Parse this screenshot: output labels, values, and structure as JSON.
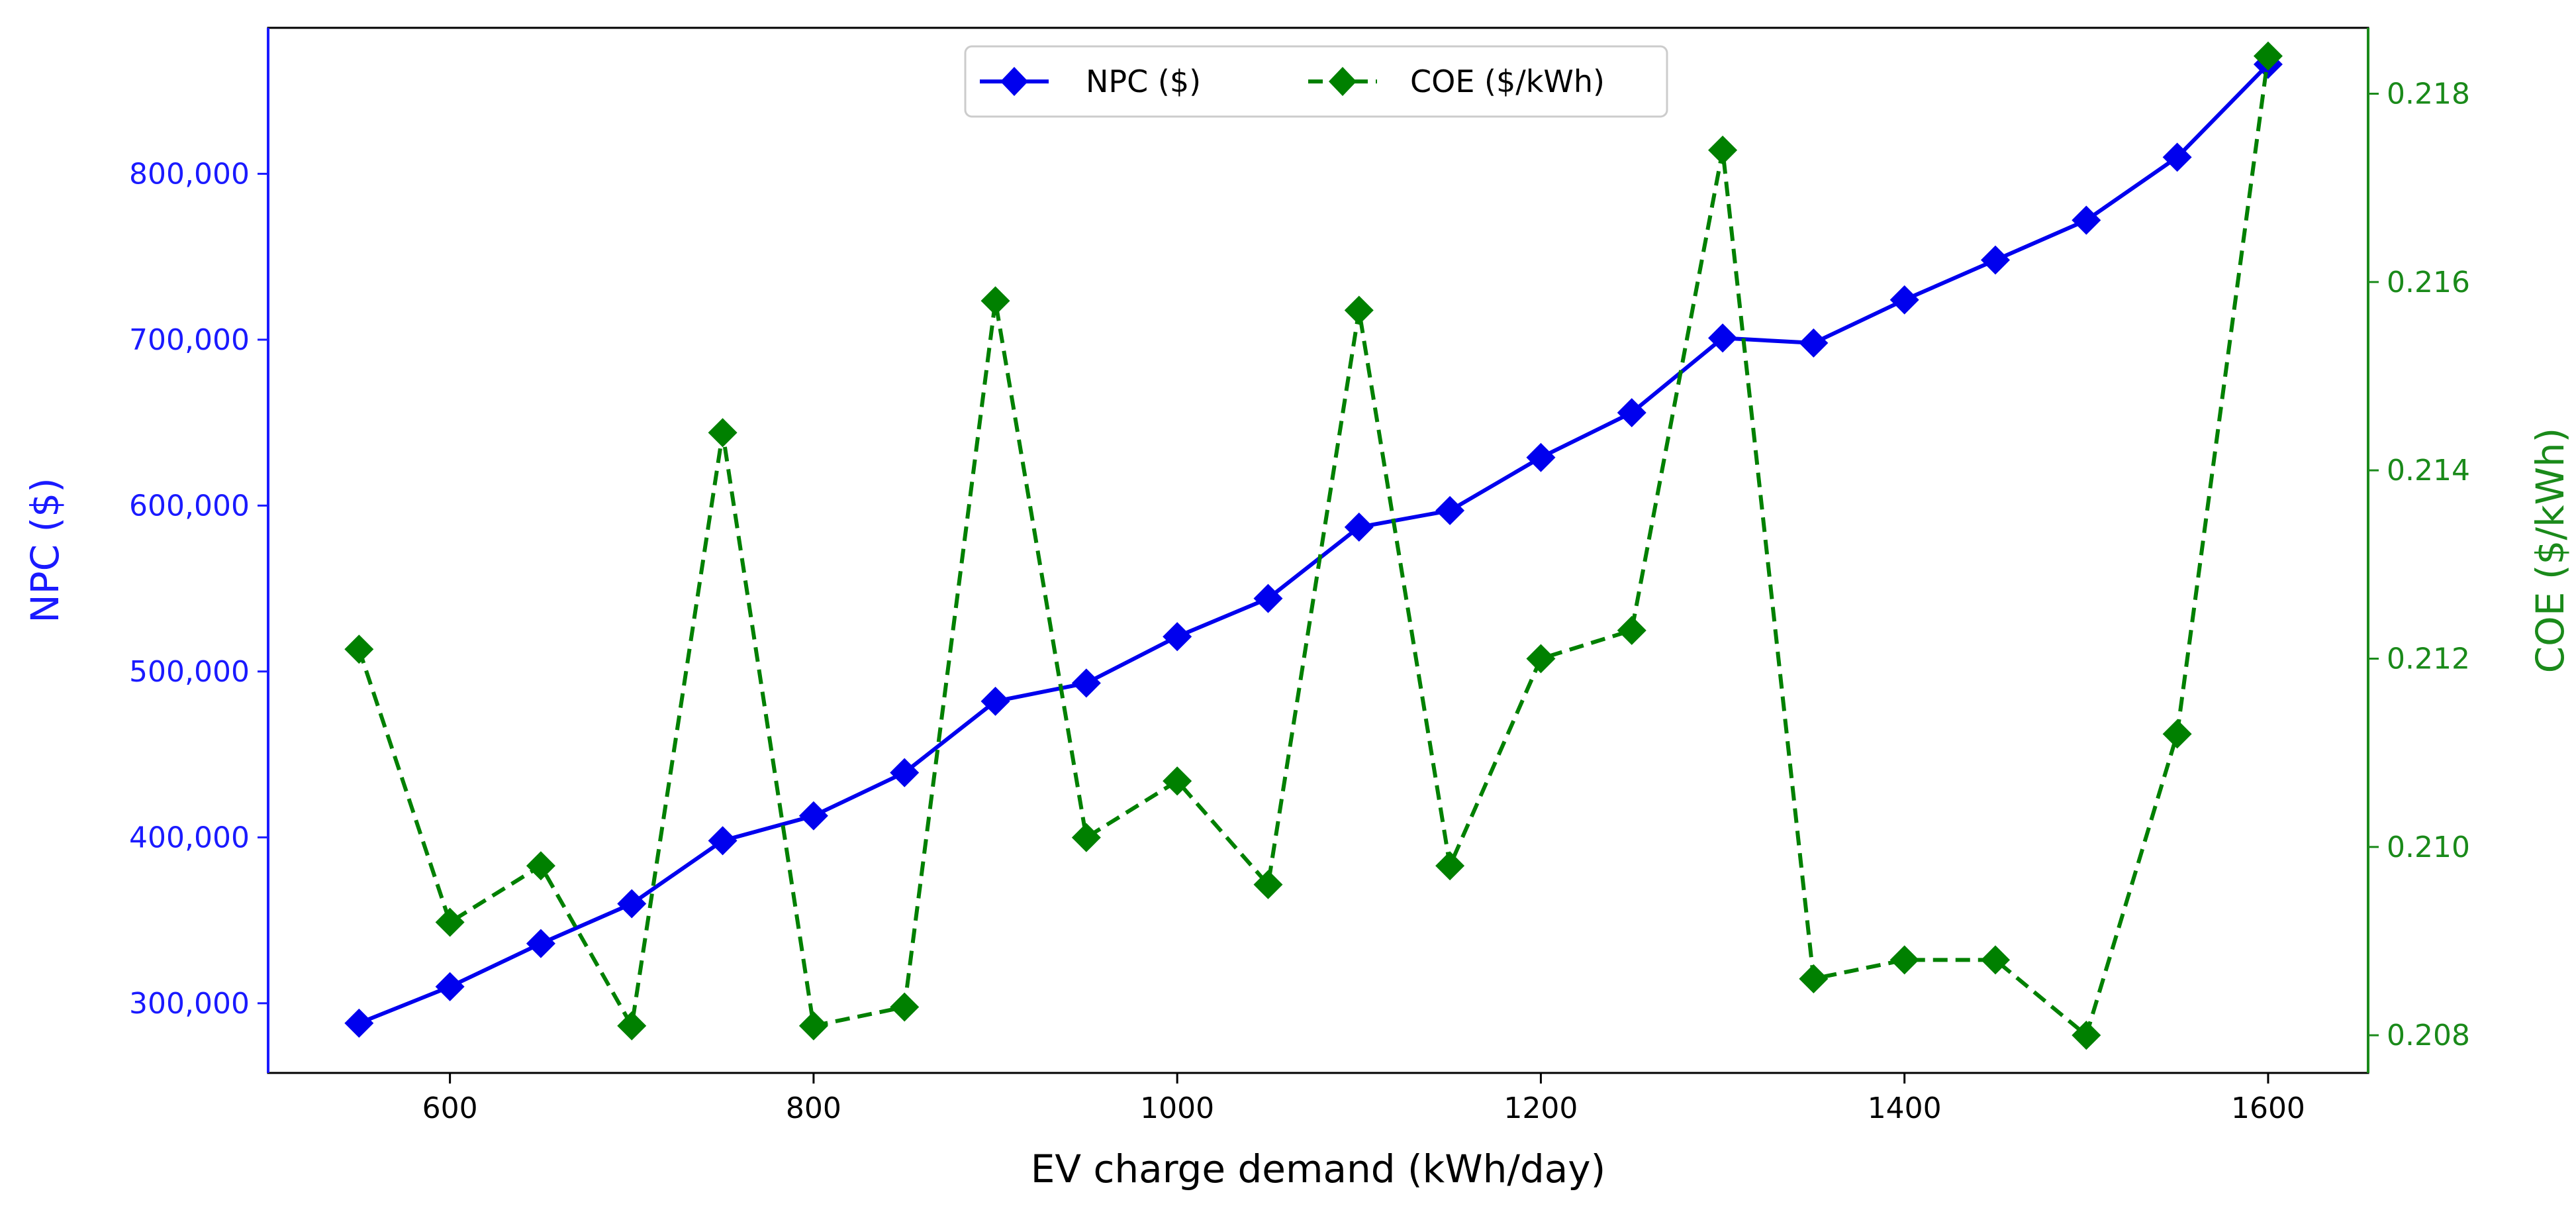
{
  "chart_data": {
    "type": "line",
    "title": "",
    "xlabel": "EV charge demand (kWh/day)",
    "ylabel_left": "NPC ($)",
    "ylabel_right": "COE ($/kWh)",
    "xlim": [
      500,
      1655
    ],
    "ylim_left": [
      258000,
      888000
    ],
    "ylim_right": [
      0.2076,
      0.2187
    ],
    "x_ticks": [
      600,
      800,
      1000,
      1200,
      1400,
      1600
    ],
    "x_tick_labels": [
      "600",
      "800",
      "1000",
      "1200",
      "1400",
      "1600"
    ],
    "y_left_ticks": [
      300000,
      400000,
      500000,
      600000,
      700000,
      800000
    ],
    "y_left_tick_labels": [
      "300,000",
      "400,000",
      "500,000",
      "600,000",
      "700,000",
      "800,000"
    ],
    "y_right_ticks": [
      0.208,
      0.21,
      0.212,
      0.214,
      0.216,
      0.218
    ],
    "y_right_tick_labels": [
      "0.208",
      "0.210",
      "0.212",
      "0.214",
      "0.216",
      "0.218"
    ],
    "x": [
      550,
      600,
      650,
      700,
      750,
      800,
      850,
      900,
      950,
      1000,
      1050,
      1100,
      1150,
      1200,
      1250,
      1300,
      1350,
      1400,
      1450,
      1500,
      1550,
      1600
    ],
    "series": [
      {
        "name": "NPC ($)",
        "axis": "left",
        "color": "#0000ee",
        "line_style": "solid",
        "marker": "diamond",
        "values": [
          288000,
          310000,
          336000,
          360000,
          398000,
          413000,
          439000,
          482000,
          493000,
          521000,
          544000,
          587000,
          597000,
          629000,
          656000,
          701000,
          698000,
          724000,
          748000,
          772000,
          810000,
          866000
        ]
      },
      {
        "name": "COE ($/kWh)",
        "axis": "right",
        "color": "#008000",
        "line_style": "dashed",
        "marker": "diamond",
        "values": [
          0.2121,
          0.2092,
          0.2098,
          0.2081,
          0.2144,
          0.2081,
          0.2083,
          0.2158,
          0.2101,
          0.2107,
          0.2096,
          0.2157,
          0.2098,
          0.212,
          0.2123,
          0.2174,
          0.2086,
          0.2088,
          0.2088,
          0.208,
          0.2112,
          0.2184
        ]
      }
    ],
    "legend": {
      "position": "top-center"
    },
    "colors": {
      "left_axis": "#1a1aff",
      "right_axis": "#1a8a1a"
    },
    "grid": false
  }
}
